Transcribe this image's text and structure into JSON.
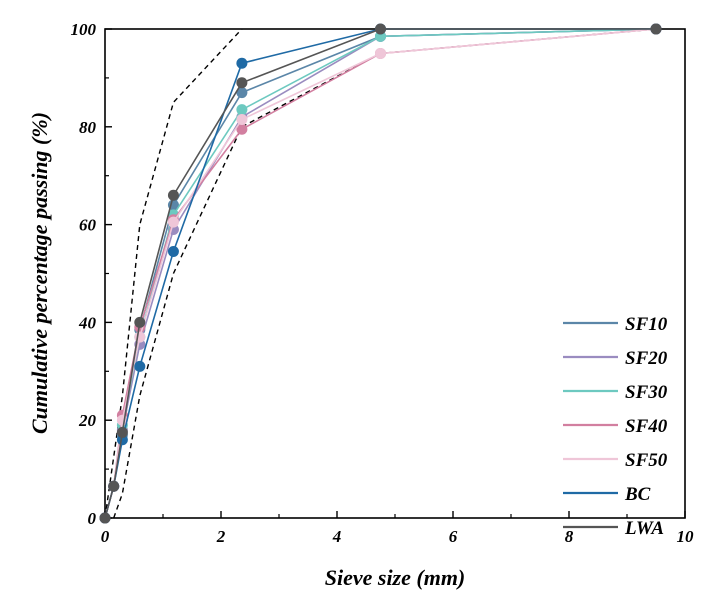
{
  "chart_data": {
    "type": "line",
    "title": "",
    "xlabel": "Sieve size (mm)",
    "ylabel": "Cumulative percentage passing (%)",
    "xlim": [
      0,
      10
    ],
    "ylim": [
      0,
      100
    ],
    "xticks": [
      0,
      2,
      4,
      6,
      8,
      10
    ],
    "yticks": [
      0,
      20,
      40,
      60,
      80,
      100
    ],
    "grid": false,
    "legend_position": "bottom-right",
    "series": [
      {
        "name": "SF10",
        "color": "#5b86a8",
        "x": [
          0,
          0.15,
          0.3,
          0.6,
          1.18,
          2.36,
          4.75,
          9.5
        ],
        "y": [
          0,
          6.5,
          17,
          38.5,
          64,
          87,
          98.5,
          100
        ]
      },
      {
        "name": "SF20",
        "color": "#9a8cc0",
        "x": [
          0,
          0.15,
          0.3,
          0.6,
          1.18,
          2.36,
          4.75,
          9.5
        ],
        "y": [
          0,
          6.5,
          18,
          35.5,
          59,
          82,
          98.5,
          100
        ]
      },
      {
        "name": "SF30",
        "color": "#6dc9c0",
        "x": [
          0,
          0.15,
          0.3,
          0.6,
          1.18,
          2.36,
          4.75,
          9.5
        ],
        "y": [
          0,
          6.5,
          19,
          37,
          62,
          83.5,
          98.5,
          100
        ]
      },
      {
        "name": "SF40",
        "color": "#d27fa0",
        "x": [
          0,
          0.15,
          0.3,
          0.6,
          1.18,
          2.36,
          4.75,
          9.5
        ],
        "y": [
          0,
          6.5,
          21,
          39,
          61,
          79.5,
          95,
          100
        ]
      },
      {
        "name": "SF50",
        "color": "#efc6d8",
        "x": [
          0,
          0.15,
          0.3,
          0.6,
          1.18,
          2.36,
          4.75,
          9.5
        ],
        "y": [
          0,
          6.5,
          20,
          37,
          60.5,
          81.5,
          95,
          100
        ]
      },
      {
        "name": "BC",
        "color": "#1f6aa5",
        "x": [
          0,
          0.15,
          0.3,
          0.6,
          1.18,
          2.36,
          4.75,
          9.5
        ],
        "y": [
          0,
          6.5,
          16,
          31,
          54.5,
          93,
          100,
          100
        ]
      },
      {
        "name": "LWA",
        "color": "#555555",
        "x": [
          0,
          0.15,
          0.3,
          0.6,
          1.18,
          2.36,
          4.75,
          9.5
        ],
        "y": [
          0,
          6.5,
          17.5,
          40,
          66,
          89,
          100,
          100
        ]
      }
    ],
    "envelopes": [
      {
        "name": "upper-limit",
        "color": "#000000",
        "x": [
          0,
          0.3,
          0.6,
          1.18,
          2.36
        ],
        "y": [
          0,
          25,
          60,
          85,
          100
        ]
      },
      {
        "name": "lower-limit",
        "color": "#000000",
        "x": [
          0.15,
          0.3,
          0.6,
          1.18,
          2.36,
          4.75,
          9.5
        ],
        "y": [
          0,
          5,
          25,
          50,
          80,
          95,
          100
        ]
      }
    ]
  }
}
